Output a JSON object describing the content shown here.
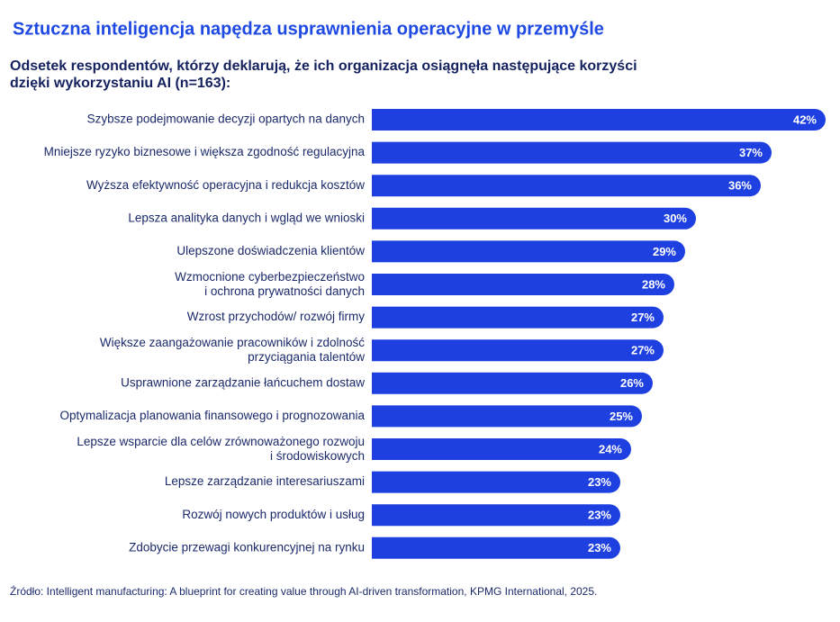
{
  "chart_data": {
    "type": "bar",
    "orientation": "horizontal",
    "title": "Sztuczna inteligencja napędza usprawnienia operacyjne w przemyśle",
    "subtitle": "Odsetek respondentów, którzy deklarują, że ich organizacja osiągnęła następujące korzyści\ndzięki wykorzystaniu AI (n=163):",
    "categories": [
      "Szybsze podejmowanie decyzji opartych na danych",
      "Mniejsze ryzyko biznesowe i większa zgodność regulacyjna",
      "Wyższa efektywność operacyjna i redukcja kosztów",
      "Lepsza analityka danych i wgląd we wnioski",
      "Ulepszone doświadczenia klientów",
      "Wzmocnione cyberbezpieczeństwo\ni ochrona prywatności danych",
      "Wzrost przychodów/ rozwój firmy",
      "Większe zaangażowanie pracowników i zdolność\nprzyciągania talentów",
      "Usprawnione zarządzanie łańcuchem dostaw",
      "Optymalizacja planowania finansowego i prognozowania",
      "Lepsze wsparcie dla celów zrównoważonego rozwoju\ni środowiskowych",
      "Lepsze zarządzanie interesariuszami",
      "Rozwój nowych produktów i usług",
      "Zdobycie przewagi konkurencyjnej na rynku"
    ],
    "values": [
      42,
      37,
      36,
      30,
      29,
      28,
      27,
      27,
      26,
      25,
      24,
      23,
      23,
      23
    ],
    "value_labels": [
      "42%",
      "37%",
      "36%",
      "30%",
      "29%",
      "28%",
      "27%",
      "27%",
      "26%",
      "25%",
      "24%",
      "23%",
      "23%",
      "23%"
    ],
    "color": "#1e40e0",
    "source": "Źródło: Intelligent manufacturing: A blueprint for creating value through AI-driven transformation, KPMG International, 2025."
  }
}
